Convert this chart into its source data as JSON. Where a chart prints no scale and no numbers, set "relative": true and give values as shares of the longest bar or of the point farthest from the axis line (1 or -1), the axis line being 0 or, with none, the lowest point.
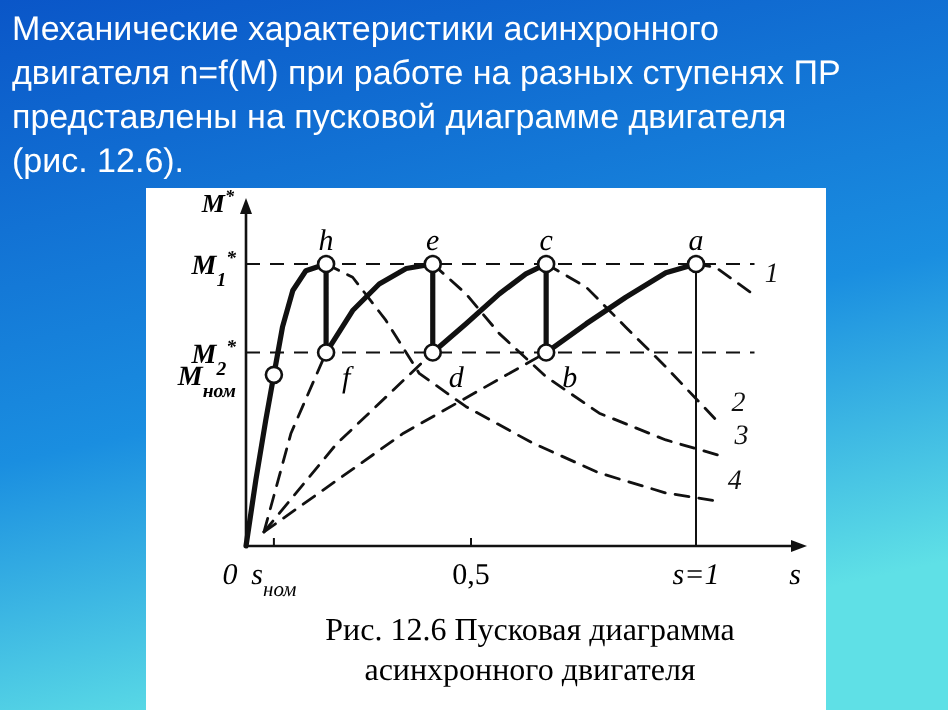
{
  "chart_data": {
    "type": "line",
    "title": "Механические характеристики асинхронного двигателя n=f(M) при работе на разных ступенях ПР представлены на пусковой диаграмме двигателя (рис. 12.6).",
    "xlabel": "s",
    "ylabel": "M$^{*}$",
    "relative": true,
    "xlim": [
      0,
      1.22
    ],
    "xticks": [
      0,
      {
        "value": 0.062,
        "label": "s$_{ном}$"
      },
      {
        "value": 0.5,
        "label": "0,5"
      },
      {
        "value": 1,
        "label": "s=1"
      }
    ],
    "legend": false,
    "grid": false,
    "series": [
      {
        "color": "#111111",
        "line_style": "solid",
        "x": [
          0,
          0.022,
          0.044,
          0.062,
          0.081,
          0.104,
          0.133,
          0.178,
          0.178,
          0.237,
          0.296,
          0.356,
          0.415,
          0.415,
          0.489,
          0.563,
          0.622,
          0.667,
          0.667,
          0.756,
          0.844,
          0.933,
          1.0
        ],
        "values": [
          0,
          0.235,
          0.447,
          0.607,
          0.776,
          0.906,
          0.976,
          1,
          0.686,
          0.835,
          0.929,
          0.984,
          1,
          0.686,
          0.788,
          0.894,
          0.965,
          1,
          0.686,
          0.788,
          0.882,
          0.969,
          1
        ]
      },
      {
        "name": "1",
        "color": "#111111",
        "line_style": "dashed",
        "x": [
          0.04,
          0.35,
          0.667,
          0.8,
          1,
          1.044,
          1.126
        ],
        "values": [
          0.05,
          0.4,
          0.686,
          null,
          1,
          0.988,
          0.894
        ]
      },
      {
        "name": "2",
        "color": "#111111",
        "line_style": "dashed",
        "x": [
          0.04,
          0.2,
          0.415,
          0.55,
          0.667,
          0.756,
          0.844,
          0.933,
          1.052
        ],
        "values": [
          0.05,
          0.36,
          0.686,
          null,
          1,
          0.918,
          0.776,
          0.635,
          0.435
        ]
      },
      {
        "name": "3",
        "color": "#111111",
        "line_style": "dashed",
        "x": [
          0.04,
          0.1,
          0.178,
          0.3,
          0.415,
          0.489,
          0.563,
          0.667,
          0.785,
          0.933,
          1.059
        ],
        "values": [
          0.05,
          0.4,
          0.686,
          null,
          1,
          0.894,
          0.753,
          0.6,
          0.471,
          0.376,
          0.318
        ]
      },
      {
        "name": "4",
        "color": "#111111",
        "line_style": "dashed",
        "x": [
          0.178,
          0.237,
          0.311,
          0.385,
          0.489,
          0.637,
          0.785,
          0.933,
          1.044
        ],
        "values": [
          1,
          0.953,
          0.8,
          0.612,
          0.494,
          0.365,
          0.259,
          0.188,
          0.16
        ]
      }
    ],
    "ref_lines": [
      {
        "axis": "y",
        "value": 1,
        "label": "M$_{1}$$^{*}$",
        "line_style": "dashed"
      },
      {
        "axis": "y",
        "value": 0.686,
        "label": "M$_{2}$$^{*}$",
        "line_style": "dashed"
      },
      {
        "axis": "x",
        "value": 1,
        "line_style": "solid"
      }
    ],
    "annotations": [
      {
        "text": "h",
        "x": 0.178,
        "y": 1
      },
      {
        "text": "e",
        "x": 0.415,
        "y": 1
      },
      {
        "text": "c",
        "x": 0.667,
        "y": 1
      },
      {
        "text": "a",
        "x": 1,
        "y": 1
      },
      {
        "text": "f",
        "x": 0.178,
        "y": 0.686
      },
      {
        "text": "d",
        "x": 0.415,
        "y": 0.686
      },
      {
        "text": "b",
        "x": 0.667,
        "y": 0.686
      },
      {
        "text": "M$_{ном}$",
        "x": 0.062,
        "y": 0.607
      },
      "Рис. 12.6 Пусковая диаграмма асинхронного двигателя"
    ]
  }
}
